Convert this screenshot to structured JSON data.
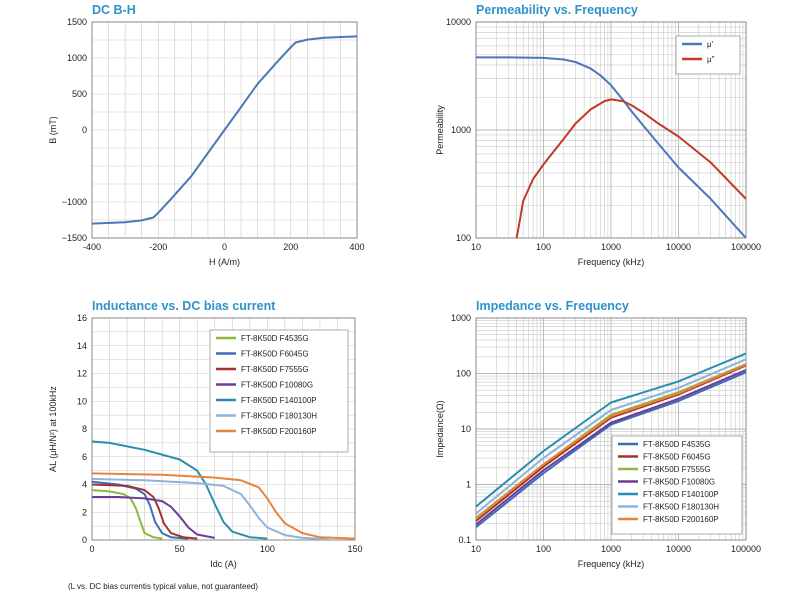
{
  "chart_data": [
    {
      "type": "line",
      "title": "DC B-H",
      "xlabel": "H (A/m)",
      "ylabel": "B (mT)",
      "xscale": "linear",
      "yscale": "linear",
      "xlim": [
        -400,
        400
      ],
      "ylim": [
        -1500,
        1500
      ],
      "xticks": [
        "-400",
        "-200",
        "0",
        "200",
        "400"
      ],
      "yticks": [
        "1500",
        "1000",
        "500",
        "0",
        "−1000",
        "−1500"
      ],
      "ytick_values": [
        1500,
        1000,
        500,
        0,
        -1000,
        -1500
      ],
      "grid": true,
      "series": [
        {
          "color": "#4a78b8",
          "x": [
            -400,
            -300,
            -250,
            -215,
            -200,
            -160,
            -100,
            -50,
            0,
            50,
            100,
            160,
            200,
            215,
            250,
            300,
            400
          ],
          "y": [
            -1300,
            -1280,
            -1255,
            -1215,
            -1150,
            -950,
            -640,
            -320,
            0,
            320,
            640,
            950,
            1150,
            1215,
            1255,
            1280,
            1300
          ]
        }
      ]
    },
    {
      "type": "line",
      "title": "Permeability vs. Frequency",
      "xlabel": "Frequency (kHz)",
      "ylabel": "Permeability",
      "xscale": "log",
      "yscale": "log",
      "xlim": [
        10,
        100000
      ],
      "ylim": [
        100,
        10000
      ],
      "xticks": [
        "10",
        "100",
        "1000",
        "10000",
        "100000"
      ],
      "yticks": [
        "10000",
        "1000",
        "100"
      ],
      "grid": true,
      "legend_position": "top-right",
      "series": [
        {
          "name": "μ'",
          "color": "#4a78b8",
          "x": [
            10,
            30,
            100,
            200,
            300,
            500,
            700,
            1000,
            1500,
            2000,
            3000,
            5000,
            10000,
            30000,
            100000
          ],
          "y": [
            4700,
            4700,
            4650,
            4500,
            4250,
            3700,
            3200,
            2600,
            1900,
            1500,
            1100,
            750,
            450,
            230,
            100
          ]
        },
        {
          "name": "μ\"",
          "color": "#c0392b",
          "x": [
            40,
            45,
            50,
            70,
            100,
            200,
            300,
            500,
            800,
            1000,
            1500,
            2000,
            3000,
            5000,
            10000,
            30000,
            100000
          ],
          "y": [
            100,
            150,
            220,
            350,
            480,
            830,
            1150,
            1550,
            1850,
            1920,
            1850,
            1700,
            1450,
            1150,
            870,
            500,
            230
          ]
        }
      ]
    },
    {
      "type": "line",
      "title": "Inductance vs. DC bias current",
      "xlabel": "Idc (A)",
      "ylabel": "AL (μH/N²) at 100kHz",
      "xscale": "linear",
      "yscale": "linear",
      "xlim": [
        0,
        150
      ],
      "ylim": [
        0,
        16
      ],
      "xticks": [
        "0",
        "50",
        "100",
        "150"
      ],
      "yticks": [
        "16",
        "14",
        "12",
        "10",
        "8",
        "6",
        "4",
        "2",
        "0"
      ],
      "grid": true,
      "legend_position": "top-right",
      "series": [
        {
          "name": "FT-8K50D F4535G",
          "color": "#8cb83e",
          "x": [
            0,
            10,
            18,
            22,
            25,
            28,
            30,
            35,
            40
          ],
          "y": [
            3.6,
            3.5,
            3.3,
            3.0,
            2.3,
            1.2,
            0.5,
            0.2,
            0.1
          ]
        },
        {
          "name": "FT-8K50D F6045G",
          "color": "#3d6db5",
          "x": [
            0,
            15,
            25,
            30,
            33,
            36,
            40,
            45,
            55
          ],
          "y": [
            4.2,
            4.0,
            3.7,
            3.3,
            2.5,
            1.3,
            0.5,
            0.2,
            0.1
          ]
        },
        {
          "name": "FT-8K50D F7555G",
          "color": "#a3322c",
          "x": [
            0,
            20,
            30,
            35,
            38,
            41,
            45,
            52,
            60
          ],
          "y": [
            4.0,
            3.9,
            3.6,
            3.1,
            2.3,
            1.2,
            0.5,
            0.2,
            0.1
          ]
        },
        {
          "name": "FT-8K50D F10080G",
          "color": "#6b3d96",
          "x": [
            0,
            15,
            30,
            40,
            45,
            50,
            55,
            60,
            70
          ],
          "y": [
            3.1,
            3.1,
            3.0,
            2.8,
            2.4,
            1.7,
            0.9,
            0.4,
            0.15
          ]
        },
        {
          "name": "FT-8K50D F140100P",
          "color": "#2a8fab",
          "x": [
            0,
            10,
            30,
            50,
            60,
            65,
            70,
            75,
            80,
            90,
            100
          ],
          "y": [
            7.1,
            7.0,
            6.5,
            5.8,
            5.0,
            4.0,
            2.6,
            1.3,
            0.6,
            0.2,
            0.1
          ]
        },
        {
          "name": "FT-8K50D F180130H",
          "color": "#8db4dd",
          "x": [
            0,
            30,
            60,
            75,
            85,
            90,
            95,
            100,
            110,
            120,
            135
          ],
          "y": [
            4.4,
            4.3,
            4.1,
            3.9,
            3.3,
            2.5,
            1.6,
            0.9,
            0.35,
            0.15,
            0.05
          ]
        },
        {
          "name": "FT-8K50D F200160P",
          "color": "#e8843a",
          "x": [
            0,
            40,
            70,
            85,
            95,
            100,
            105,
            110,
            120,
            130,
            150
          ],
          "y": [
            4.8,
            4.7,
            4.5,
            4.3,
            3.8,
            3.0,
            2.0,
            1.2,
            0.5,
            0.2,
            0.1
          ]
        }
      ]
    },
    {
      "type": "line",
      "title": "Impedance vs. Frequency",
      "xlabel": "Frequency (kHz)",
      "ylabel": "Impedance(Ω)",
      "xscale": "log",
      "yscale": "log",
      "xlim": [
        10,
        100000
      ],
      "ylim": [
        0.1,
        1000
      ],
      "xticks": [
        "10",
        "100",
        "1000",
        "10000",
        "100000"
      ],
      "yticks": [
        "1000",
        "100",
        "10",
        "1",
        "0.1"
      ],
      "grid": true,
      "legend_position": "bottom-right",
      "series": [
        {
          "name": "FT-8K50D F4535G",
          "color": "#3d6db5",
          "x": [
            10,
            100,
            1000,
            10000,
            100000
          ],
          "y": [
            0.17,
            1.6,
            12,
            32,
            105
          ]
        },
        {
          "name": "FT-8K50D F6045G",
          "color": "#a3322c",
          "x": [
            10,
            100,
            1000,
            10000,
            100000
          ],
          "y": [
            0.22,
            2.1,
            16,
            42,
            140
          ]
        },
        {
          "name": "FT-8K50D F7555G",
          "color": "#8cb83e",
          "x": [
            10,
            100,
            1000,
            10000,
            100000
          ],
          "y": [
            0.25,
            2.3,
            18,
            46,
            148
          ]
        },
        {
          "name": "FT-8K50D F10080G",
          "color": "#6b3d96",
          "x": [
            10,
            100,
            1000,
            10000,
            100000
          ],
          "y": [
            0.19,
            1.8,
            13,
            35,
            115
          ]
        },
        {
          "name": "FT-8K50D F140100P",
          "color": "#2a8fab",
          "x": [
            10,
            100,
            1000,
            10000,
            100000
          ],
          "y": [
            0.4,
            4.0,
            30,
            72,
            230
          ]
        },
        {
          "name": "FT-8K50D F180130H",
          "color": "#8db4dd",
          "x": [
            10,
            100,
            1000,
            10000,
            100000
          ],
          "y": [
            0.3,
            3.0,
            22,
            55,
            180
          ]
        },
        {
          "name": "FT-8K50D F200160P",
          "color": "#e8843a",
          "x": [
            10,
            100,
            1000,
            10000,
            100000
          ],
          "y": [
            0.24,
            2.3,
            17,
            44,
            145
          ]
        }
      ]
    }
  ],
  "footnote": "(L vs. DC bias currentis typical value, not guaranteed)"
}
